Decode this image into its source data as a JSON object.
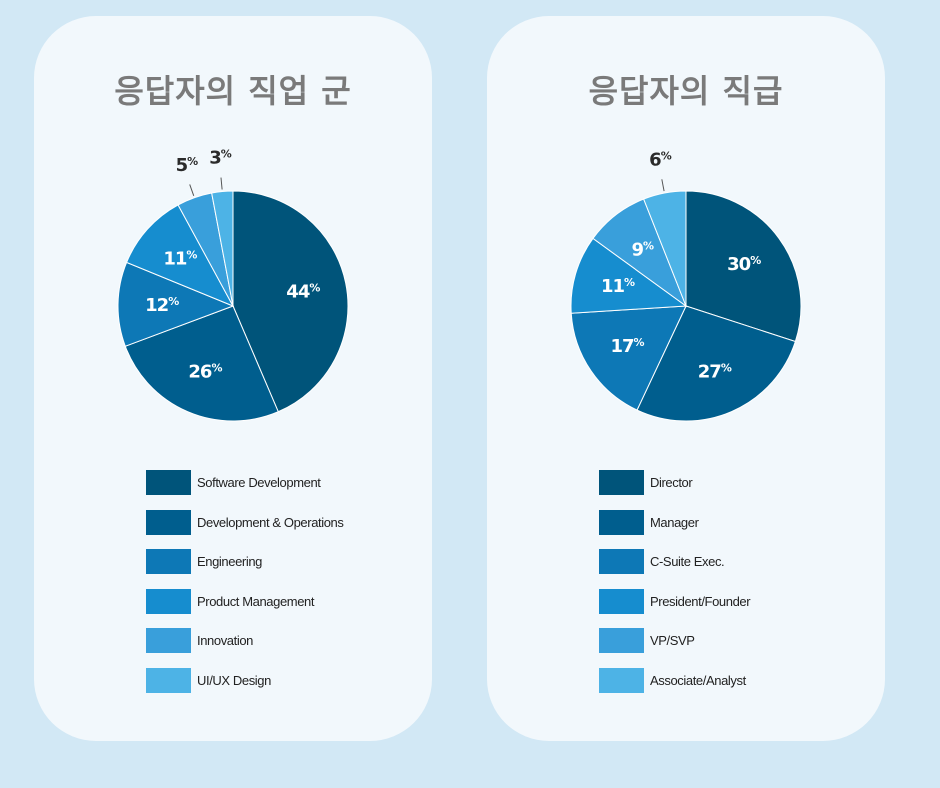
{
  "colors": [
    "#00547a",
    "#005e8e",
    "#0d78b6",
    "#168dcf",
    "#399fdb",
    "#4db3e6"
  ],
  "chart_data": [
    {
      "type": "pie",
      "title": "응답자의 직업 군",
      "unit": "%",
      "categories": [
        "Software Development",
        "Development & Operations",
        "Engineering",
        "Product Management",
        "Innovation",
        "UI/UX Design"
      ],
      "values": [
        44,
        26,
        12,
        11,
        5,
        3
      ]
    },
    {
      "type": "pie",
      "title": "응답자의 직급",
      "unit": "%",
      "categories": [
        "Director",
        "Manager",
        "C-Suite Exec.",
        "President/Founder",
        "VP/SVP",
        "Associate/Analyst"
      ],
      "values": [
        30,
        27,
        17,
        11,
        9,
        6
      ]
    }
  ]
}
